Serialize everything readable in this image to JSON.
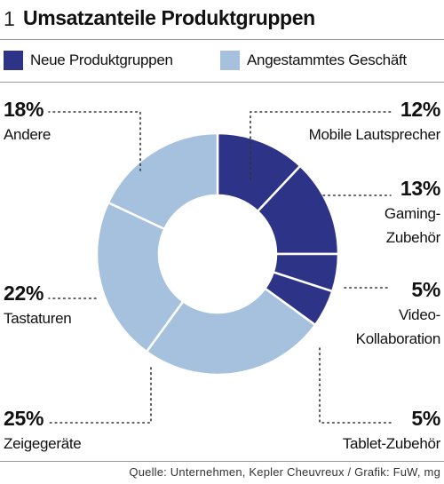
{
  "figure": {
    "number": "1",
    "title": "Umsatzanteile Produktgruppen"
  },
  "colors": {
    "neu": "#2d3387",
    "alt": "#a5c1de"
  },
  "legend": [
    {
      "label": "Neue Produktgruppen",
      "color": "#2d3387"
    },
    {
      "label": "Angestammtes Geschäft",
      "color": "#a5c1de"
    }
  ],
  "labels": {
    "mobile": {
      "pct": "12%",
      "l1": "Mobile Lautsprecher",
      "l2": ""
    },
    "gaming": {
      "pct": "13%",
      "l1": "Gaming-",
      "l2": "Zubehör"
    },
    "video": {
      "pct": "5%",
      "l1": "Video-",
      "l2": "Kollaboration"
    },
    "tablet": {
      "pct": "5%",
      "l1": "Tablet-Zubehör",
      "l2": ""
    },
    "zeige": {
      "pct": "25%",
      "l1": "Zeigegeräte",
      "l2": ""
    },
    "tastaturen": {
      "pct": "22%",
      "l1": "Tastaturen",
      "l2": ""
    },
    "andere": {
      "pct": "18%",
      "l1": "Andere",
      "l2": ""
    }
  },
  "chart_data": {
    "type": "pie",
    "variant": "donut",
    "title": "Umsatzanteile Produktgruppen",
    "unit": "%",
    "categories": [
      "Mobile Lautsprecher",
      "Gaming-Zubehör",
      "Video-Kollaboration",
      "Tablet-Zubehör",
      "Zeigegeräte",
      "Tastaturen",
      "Andere"
    ],
    "values": [
      12,
      13,
      5,
      5,
      25,
      22,
      18
    ],
    "groups": [
      "Neue Produktgruppen",
      "Neue Produktgruppen",
      "Neue Produktgruppen",
      "Neue Produktgruppen",
      "Angestammtes Geschäft",
      "Angestammtes Geschäft",
      "Angestammtes Geschäft"
    ],
    "legend": [
      "Neue Produktgruppen",
      "Angestammtes Geschäft"
    ],
    "start": "12 o'clock, clockwise"
  },
  "source": "Quelle: Unternehmen, Kepler Cheuvreux / Grafik: FuW, mg"
}
